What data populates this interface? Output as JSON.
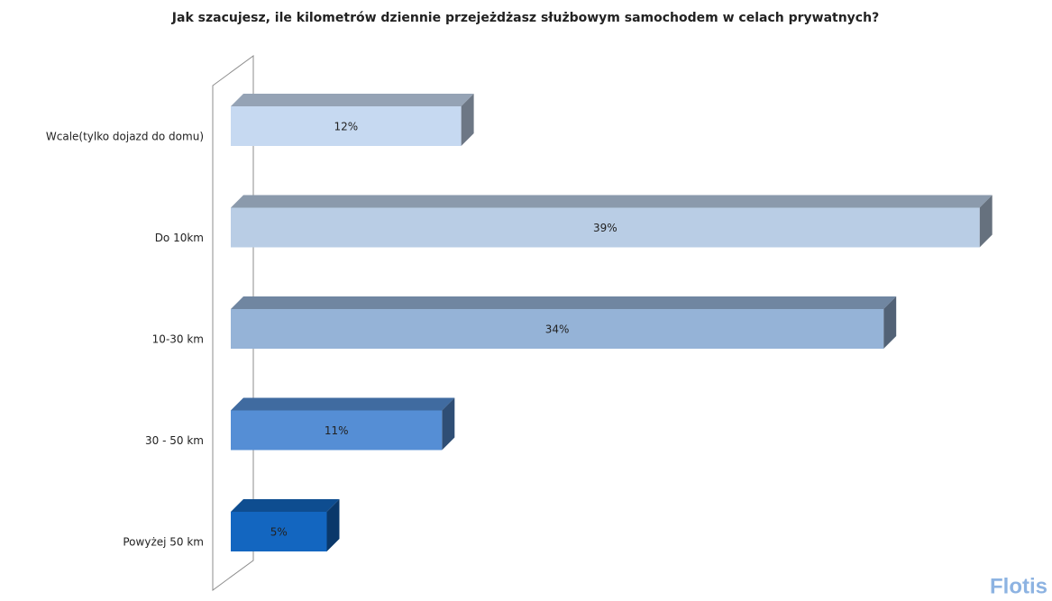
{
  "chart_data": {
    "type": "bar3d-horizontal",
    "title": "Jak szacujesz, ile kilometrów dziennie przejeżdżasz służbowym samochodem w celach prywatnych?",
    "categories": [
      "Wcale(tylko dojazd do domu)",
      "Do 10km",
      "10-30 km",
      "30 - 50 km",
      "Powyżej 50 km"
    ],
    "values": [
      12,
      39,
      34,
      11,
      5
    ],
    "value_labels": [
      "12%",
      "39%",
      "34%",
      "11%",
      "5%"
    ],
    "colors": [
      "#c6d9f1",
      "#b9cde5",
      "#95b3d7",
      "#558ed5",
      "#1366c0"
    ],
    "watermark": "Flotis"
  }
}
